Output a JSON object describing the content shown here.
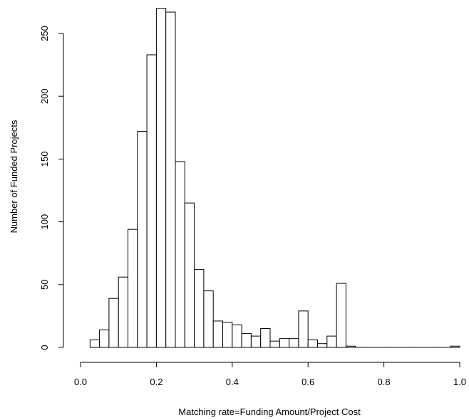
{
  "chart_data": {
    "type": "bar",
    "title": "",
    "xlabel": "Matching rate=Funding Amount/Project Cost",
    "ylabel": "Number of Funded Projects",
    "xlim": [
      0.0,
      1.0
    ],
    "ylim": [
      0,
      270
    ],
    "bin_width": 0.025,
    "bins": [
      {
        "x0": 0.025,
        "x1": 0.05,
        "count": 6
      },
      {
        "x0": 0.05,
        "x1": 0.075,
        "count": 14
      },
      {
        "x0": 0.075,
        "x1": 0.1,
        "count": 39
      },
      {
        "x0": 0.1,
        "x1": 0.125,
        "count": 56
      },
      {
        "x0": 0.125,
        "x1": 0.15,
        "count": 94
      },
      {
        "x0": 0.15,
        "x1": 0.175,
        "count": 172
      },
      {
        "x0": 0.175,
        "x1": 0.2,
        "count": 233
      },
      {
        "x0": 0.2,
        "x1": 0.225,
        "count": 270
      },
      {
        "x0": 0.225,
        "x1": 0.25,
        "count": 267
      },
      {
        "x0": 0.25,
        "x1": 0.275,
        "count": 148
      },
      {
        "x0": 0.275,
        "x1": 0.3,
        "count": 115
      },
      {
        "x0": 0.3,
        "x1": 0.325,
        "count": 62
      },
      {
        "x0": 0.325,
        "x1": 0.35,
        "count": 45
      },
      {
        "x0": 0.35,
        "x1": 0.375,
        "count": 21
      },
      {
        "x0": 0.375,
        "x1": 0.4,
        "count": 20
      },
      {
        "x0": 0.4,
        "x1": 0.425,
        "count": 18
      },
      {
        "x0": 0.425,
        "x1": 0.45,
        "count": 11
      },
      {
        "x0": 0.45,
        "x1": 0.475,
        "count": 9
      },
      {
        "x0": 0.475,
        "x1": 0.5,
        "count": 15
      },
      {
        "x0": 0.5,
        "x1": 0.525,
        "count": 5
      },
      {
        "x0": 0.525,
        "x1": 0.55,
        "count": 7
      },
      {
        "x0": 0.55,
        "x1": 0.575,
        "count": 7
      },
      {
        "x0": 0.575,
        "x1": 0.6,
        "count": 29
      },
      {
        "x0": 0.6,
        "x1": 0.625,
        "count": 6
      },
      {
        "x0": 0.625,
        "x1": 0.65,
        "count": 3
      },
      {
        "x0": 0.65,
        "x1": 0.675,
        "count": 9
      },
      {
        "x0": 0.675,
        "x1": 0.7,
        "count": 51
      },
      {
        "x0": 0.7,
        "x1": 0.725,
        "count": 1
      },
      {
        "x0": 0.725,
        "x1": 0.75,
        "count": 0
      },
      {
        "x0": 0.75,
        "x1": 0.775,
        "count": 0
      },
      {
        "x0": 0.775,
        "x1": 0.8,
        "count": 0
      },
      {
        "x0": 0.8,
        "x1": 0.825,
        "count": 0
      },
      {
        "x0": 0.825,
        "x1": 0.85,
        "count": 0
      },
      {
        "x0": 0.85,
        "x1": 0.875,
        "count": 0
      },
      {
        "x0": 0.875,
        "x1": 0.9,
        "count": 0
      },
      {
        "x0": 0.9,
        "x1": 0.925,
        "count": 0
      },
      {
        "x0": 0.925,
        "x1": 0.95,
        "count": 0
      },
      {
        "x0": 0.95,
        "x1": 0.975,
        "count": 0
      },
      {
        "x0": 0.975,
        "x1": 1.0,
        "count": 1
      }
    ],
    "x_ticks": [
      {
        "value": 0.0,
        "label": "0.0"
      },
      {
        "value": 0.2,
        "label": "0.2"
      },
      {
        "value": 0.4,
        "label": "0.4"
      },
      {
        "value": 0.6,
        "label": "0.6"
      },
      {
        "value": 0.8,
        "label": "0.8"
      },
      {
        "value": 1.0,
        "label": "1.0"
      }
    ],
    "y_ticks": [
      {
        "value": 0,
        "label": "0"
      },
      {
        "value": 50,
        "label": "50"
      },
      {
        "value": 100,
        "label": "100"
      },
      {
        "value": 150,
        "label": "150"
      },
      {
        "value": 200,
        "label": "200"
      },
      {
        "value": 250,
        "label": "250"
      }
    ],
    "grid": false,
    "legend": "none",
    "bar_fill": "#ffffff",
    "bar_stroke": "#000000"
  }
}
